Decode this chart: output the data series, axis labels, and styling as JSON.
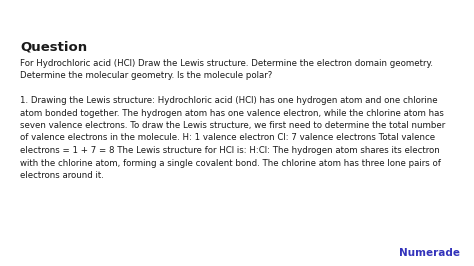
{
  "background_color": "#ffffff",
  "title": "Question",
  "title_fontsize": 9.5,
  "question_text": "For Hydrochloric acid (HCl) Draw the Lewis structure. Determine the electron domain geometry.\nDetermine the molecular geometry. Is the molecule polar?",
  "question_fontsize": 6.2,
  "body_text": "1. Drawing the Lewis structure: Hydrochloric acid (HCl) has one hydrogen atom and one chlorine\natom bonded together. The hydrogen atom has one valence electron, while the chlorine atom has\nseven valence electrons. To draw the Lewis structure, we first need to determine the total number\nof valence electrons in the molecule. H: 1 valence electron Cl: 7 valence electrons Total valence\nelectrons = 1 + 7 = 8 The Lewis structure for HCl is: H:Cl: The hydrogen atom shares its electron\nwith the chlorine atom, forming a single covalent bond. The chlorine atom has three lone pairs of\nelectrons around it.",
  "body_fontsize": 6.2,
  "numerade_text": "Numerade",
  "numerade_color": "#3333bb",
  "numerade_fontsize": 7.5,
  "text_color": "#1a1a1a",
  "font_family": "DejaVu Sans"
}
